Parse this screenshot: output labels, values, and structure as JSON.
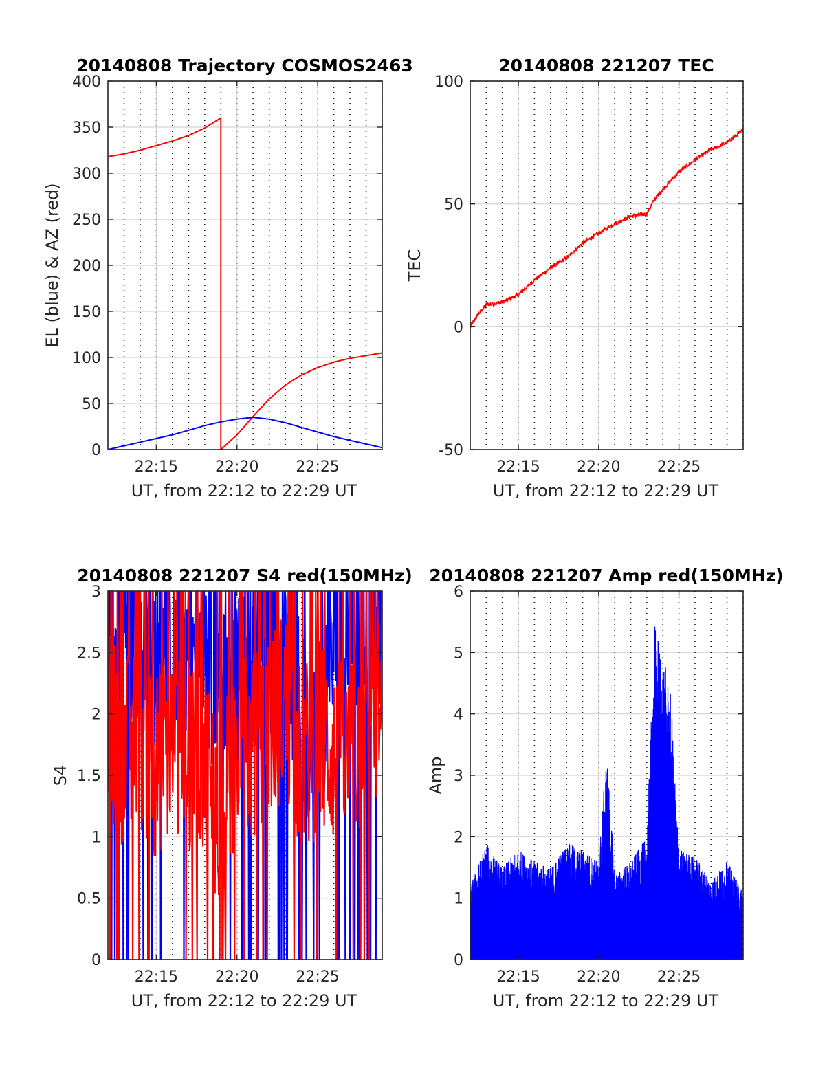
{
  "figure": {
    "xlabel_all": "UT, from 22:12 to 22:29 UT"
  },
  "chart_data": [
    {
      "type": "line",
      "title": "20140808 Trajectory COSMOS2463",
      "xlabel": "UT, from 22:12 to 22:29 UT",
      "ylabel": "EL (blue) & AZ (red)",
      "xlim": [
        "22:12",
        "22:29"
      ],
      "ylim": [
        0,
        400
      ],
      "xticks": [
        "22:15",
        "22:20",
        "22:25"
      ],
      "yticks": [
        0,
        50,
        100,
        150,
        200,
        250,
        300,
        350,
        400
      ],
      "grid": true,
      "series": [
        {
          "color": "#ff0000",
          "x": [
            "22:12",
            "22:13",
            "22:14",
            "22:15",
            "22:16",
            "22:17",
            "22:18",
            "22:19",
            "22:19",
            "22:20",
            "22:21",
            "22:22",
            "22:23",
            "22:24",
            "22:25",
            "22:26",
            "22:27",
            "22:28",
            "22:29"
          ],
          "y": [
            318,
            321,
            325,
            330,
            335,
            341,
            349,
            360,
            0,
            16,
            36,
            55,
            70,
            81,
            89,
            95,
            99,
            102,
            105
          ]
        },
        {
          "color": "#0000ff",
          "x": [
            "22:12",
            "22:13",
            "22:14",
            "22:15",
            "22:16",
            "22:17",
            "22:18",
            "22:19",
            "22:20",
            "22:21",
            "22:22",
            "22:23",
            "22:24",
            "22:25",
            "22:26",
            "22:27",
            "22:28",
            "22:29"
          ],
          "y": [
            0,
            4,
            8,
            12,
            16,
            21,
            26,
            30,
            33,
            35,
            33,
            29,
            24,
            19,
            14,
            10,
            6,
            2
          ]
        }
      ]
    },
    {
      "type": "line",
      "title": "20140808 221207 TEC",
      "xlabel": "UT, from 22:12 to 22:29 UT",
      "ylabel": "TEC",
      "xlim": [
        "22:12",
        "22:29"
      ],
      "ylim": [
        -50,
        100
      ],
      "xticks": [
        "22:15",
        "22:20",
        "22:25"
      ],
      "yticks": [
        -50,
        0,
        50,
        100
      ],
      "grid": true,
      "series": [
        {
          "color": "#ff0000",
          "x": [
            "22:12",
            "22:12:30",
            "22:13",
            "22:14",
            "22:15",
            "22:16",
            "22:17",
            "22:18",
            "22:19",
            "22:20",
            "22:21",
            "22:22",
            "22:23",
            "22:23:30",
            "22:24",
            "22:25",
            "22:26",
            "22:27",
            "22:28",
            "22:29"
          ],
          "y": [
            0,
            5,
            9,
            10,
            13,
            19,
            24,
            28,
            34,
            38,
            42,
            45,
            46,
            52,
            56,
            63,
            68,
            72,
            75,
            80
          ]
        }
      ]
    },
    {
      "type": "line",
      "title": "20140808 221207 S4 red(150MHz)",
      "xlabel": "UT, from 22:12 to 22:29 UT",
      "ylabel": "S4",
      "xlim": [
        "22:12",
        "22:29"
      ],
      "ylim": [
        0,
        3
      ],
      "xticks": [
        "22:15",
        "22:20",
        "22:25"
      ],
      "yticks": [
        0,
        0.5,
        1,
        1.5,
        2,
        2.5,
        3
      ],
      "grid": true,
      "series": [
        {
          "color": "#0000ff",
          "x": [
            "22:12",
            "22:13",
            "22:14",
            "22:15",
            "22:16",
            "22:17",
            "22:18",
            "22:19",
            "22:20",
            "22:21",
            "22:22",
            "22:23",
            "22:24",
            "22:25",
            "22:26",
            "22:27",
            "22:28",
            "22:29"
          ],
          "y": [
            2.6,
            2.5,
            2.7,
            2.5,
            2.4,
            2.6,
            2.3,
            2.5,
            2.2,
            2.4,
            2.6,
            2.3,
            2.0,
            1.9,
            2.5,
            2.7,
            2.6,
            2.7
          ]
        },
        {
          "color": "#ff0000",
          "x": [
            "22:12",
            "22:13",
            "22:14",
            "22:15",
            "22:16",
            "22:17",
            "22:18",
            "22:19",
            "22:20",
            "22:21",
            "22:22",
            "22:23",
            "22:24",
            "22:25",
            "22:26",
            "22:27",
            "22:28",
            "22:29"
          ],
          "y": [
            1.9,
            1.7,
            1.8,
            1.6,
            1.8,
            1.5,
            1.7,
            1.1,
            1.8,
            1.7,
            1.9,
            2.1,
            1.6,
            1.8,
            1.7,
            1.6,
            1.9,
            2.0
          ]
        }
      ]
    },
    {
      "type": "line",
      "title": "20140808 221207 Amp red(150MHz)",
      "xlabel": "UT, from 22:12 to 22:29 UT",
      "ylabel": "Amp",
      "xlim": [
        "22:12",
        "22:29"
      ],
      "ylim": [
        0,
        6
      ],
      "xticks": [
        "22:15",
        "22:20",
        "22:25"
      ],
      "yticks": [
        0,
        1,
        2,
        3,
        4,
        5,
        6
      ],
      "grid": true,
      "series": [
        {
          "color": "#0000ff",
          "x": [
            "22:12",
            "22:13",
            "22:14",
            "22:15",
            "22:16",
            "22:17",
            "22:18",
            "22:19",
            "22:20",
            "22:20:30",
            "22:21",
            "22:22",
            "22:23",
            "22:23:30",
            "22:24",
            "22:24:30",
            "22:25",
            "22:26",
            "22:27",
            "22:28",
            "22:29"
          ],
          "y": [
            1.2,
            1.9,
            1.5,
            1.8,
            1.6,
            1.5,
            1.9,
            1.8,
            1.6,
            3.4,
            1.4,
            1.6,
            2.0,
            5.5,
            5.0,
            4.3,
            1.8,
            1.7,
            1.3,
            1.6,
            1.1
          ]
        }
      ]
    }
  ]
}
